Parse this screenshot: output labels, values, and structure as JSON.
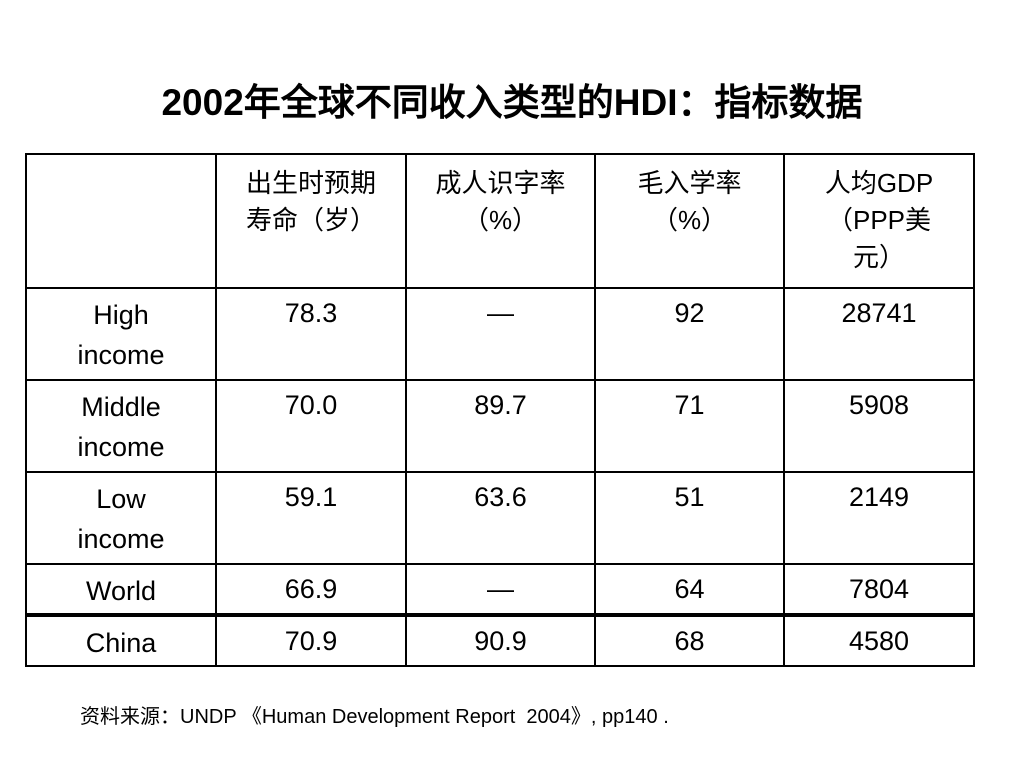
{
  "header": {
    "title": "2002年全球不同收入类型的HDI：指标数据"
  },
  "table": {
    "columns": [
      "出生时预期寿命（岁）",
      "成人识字率（%）",
      "毛入学率（%）",
      "人均GDP（PPP美元）"
    ],
    "rows": [
      {
        "label": "High income",
        "cells": [
          "78.3",
          "—",
          "92",
          "28741"
        ]
      },
      {
        "label": "Middle income",
        "cells": [
          "70.0",
          "89.7",
          "71",
          "5908"
        ]
      },
      {
        "label": "Low income",
        "cells": [
          "59.1",
          "63.6",
          "51",
          "2149"
        ]
      },
      {
        "label": "World",
        "cells": [
          "66.9",
          "—",
          "64",
          "7804"
        ]
      },
      {
        "label": "China",
        "cells": [
          "70.9",
          "90.9",
          "68",
          "4580"
        ]
      }
    ]
  },
  "footer": {
    "source": "资料来源：UNDP 《Human Development Report  2004》, pp140 ."
  }
}
